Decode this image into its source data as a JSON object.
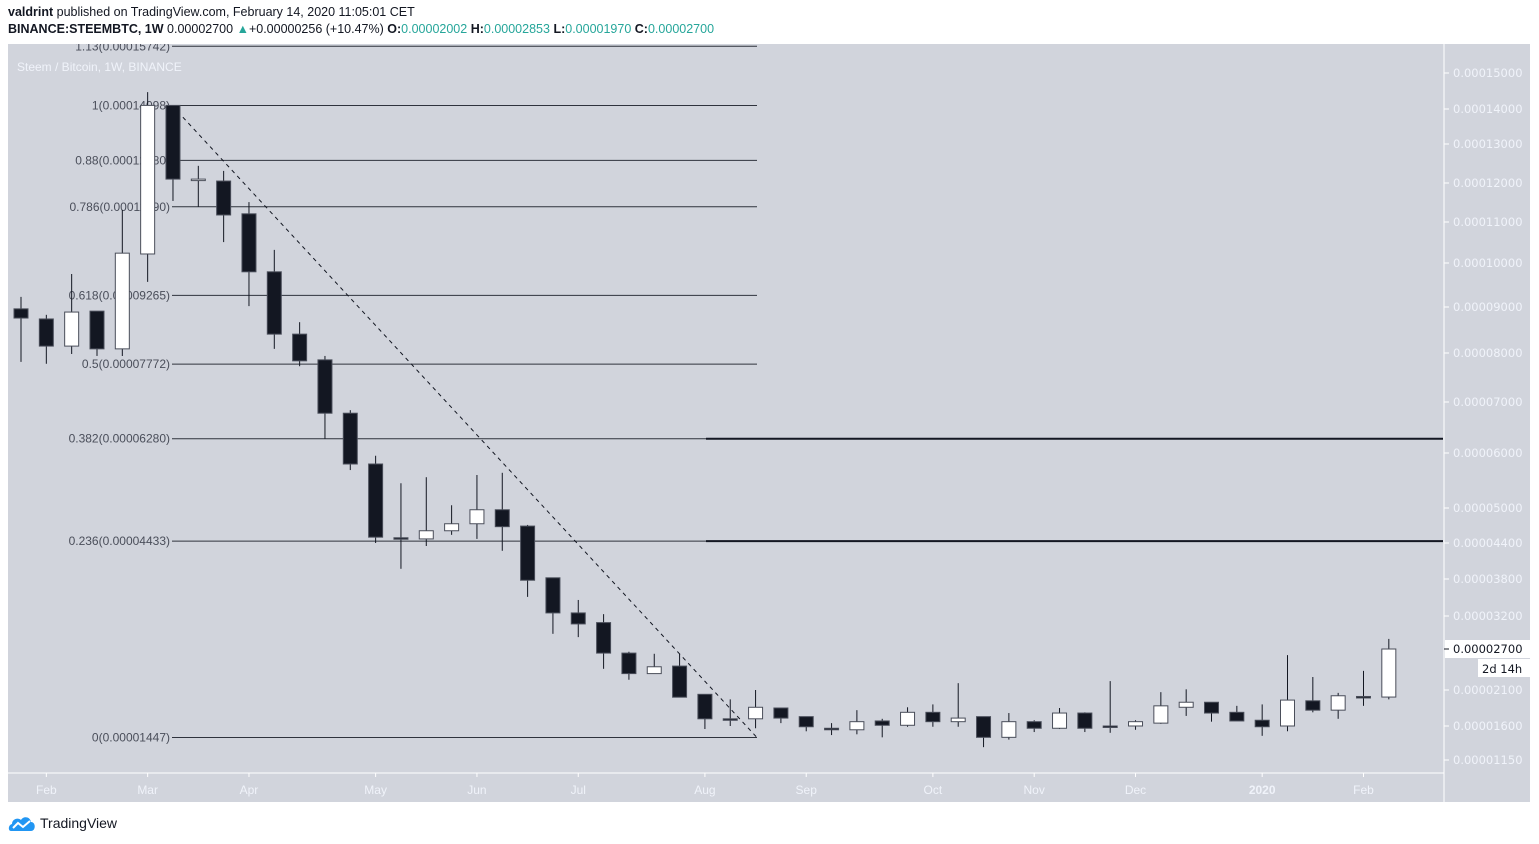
{
  "header": {
    "author": "valdrint",
    "published_text": "published on TradingView.com, February 14, 2020 11:05:01 CET",
    "symbol": "BINANCE:STEEMBTC, 1W",
    "last_price": "0.00002700",
    "change": "+0.00000256 (+10.47%)",
    "open_label": "O:",
    "open": "0.00002002",
    "high_label": "H:",
    "high": "0.00002853",
    "low_label": "L:",
    "low": "0.00001970",
    "close_label": "C:",
    "close": "0.00002700"
  },
  "legend_title": "Steem / Bitcoin, 1W, BINANCE",
  "footer": {
    "brand": "TradingView",
    "logo_icon": "tradingview-cloud-icon"
  },
  "colors": {
    "pane_bg": "#d1d4dc",
    "bull": "#ffffff",
    "bear": "#131722",
    "accent": "#26a69a"
  },
  "chart_data": {
    "type": "candlestick",
    "interval": "1W",
    "y_scale": "non-linear (tick-spaced)",
    "yticks": [
      "0.00015000",
      "0.00014000",
      "0.00013000",
      "0.00012000",
      "0.00011000",
      "0.00010000",
      "0.00009000",
      "0.00008000",
      "0.00007000",
      "0.00006000",
      "0.00005000",
      "0.00004400",
      "0.00003800",
      "0.00003200",
      "0.00002700",
      "0.00002100",
      "0.00001600",
      "0.00001150"
    ],
    "xticks": [
      "Feb",
      "Mar",
      "Apr",
      "May",
      "Jun",
      "Jul",
      "Aug",
      "Sep",
      "Oct",
      "Nov",
      "Dec",
      "2020",
      "Feb"
    ],
    "last_price_label": "0.00002700",
    "countdown_label": "2d 14h",
    "candles_ohlc": [
      [
        8.96e-05,
        9.23e-05,
        7.82e-05,
        8.76e-05
      ],
      [
        8.74e-05,
        8.83e-05,
        7.78e-05,
        8.15e-05
      ],
      [
        8.15e-05,
        9.75e-05,
        7.98e-05,
        8.89e-05
      ],
      [
        8.91e-05,
        8.91e-05,
        7.94e-05,
        8.09e-05
      ],
      [
        8.09e-05,
        0.0001131,
        7.94e-05,
        0.0001024
      ],
      [
        0.0001022,
        0.0001447,
        9.57e-05,
        0.000141
      ],
      [
        0.000141,
        0.000141,
        0.0001154,
        0.000121
      ],
      [
        0.000121,
        0.0001244,
        0.0001139,
        0.000121
      ],
      [
        0.0001205,
        0.0001231,
        0.0001051,
        0.0001118
      ],
      [
        0.0001121,
        0.0001151,
        9.02e-05,
        9.8e-05
      ],
      [
        9.8e-05,
        0.0001032,
        8.09e-05,
        8.41e-05
      ],
      [
        8.41e-05,
        8.67e-05,
        7.73e-05,
        7.84e-05
      ],
      [
        7.86e-05,
        7.94e-05,
        6.28e-05,
        6.78e-05
      ],
      [
        6.78e-05,
        6.84e-05,
        5.69e-05,
        5.8e-05
      ],
      [
        5.8e-05,
        5.95e-05,
        4.4e-05,
        4.5e-05
      ],
      [
        4.49e-05,
        5.45e-05,
        3.97e-05,
        4.48e-05
      ],
      [
        4.47e-05,
        5.56e-05,
        4.35e-05,
        4.61e-05
      ],
      [
        4.61e-05,
        5.05e-05,
        4.54e-05,
        4.73e-05
      ],
      [
        4.73e-05,
        5.6e-05,
        4.47e-05,
        4.97e-05
      ],
      [
        4.97e-05,
        5.64e-05,
        4.27e-05,
        4.68e-05
      ],
      [
        4.69e-05,
        4.71e-05,
        3.51e-05,
        3.78e-05
      ],
      [
        3.82e-05,
        3.82e-05,
        2.93e-05,
        3.25e-05
      ],
      [
        3.25e-05,
        3.46e-05,
        2.88e-05,
        3.08e-05
      ],
      [
        3.1e-05,
        3.23e-05,
        2.41e-05,
        2.64e-05
      ],
      [
        2.64e-05,
        2.66e-05,
        2.25e-05,
        2.34e-05
      ],
      [
        2.34e-05,
        2.63e-05,
        2.34e-05,
        2.44e-05
      ],
      [
        2.45e-05,
        2.63e-05,
        2e-05,
        2e-05
      ],
      [
        2.04e-05,
        2.04e-05,
        1.56e-05,
        1.7e-05
      ],
      [
        1.7e-05,
        1.97e-05,
        1.6e-05,
        1.69e-05
      ],
      [
        1.7e-05,
        2.1e-05,
        1.57e-05,
        1.86e-05
      ],
      [
        1.85e-05,
        1.85e-05,
        1.64e-05,
        1.71e-05
      ],
      [
        1.73e-05,
        1.73e-05,
        1.53e-05,
        1.59e-05
      ],
      [
        1.57e-05,
        1.64e-05,
        1.48e-05,
        1.55e-05
      ],
      [
        1.55e-05,
        1.82e-05,
        1.49e-05,
        1.66e-05
      ],
      [
        1.67e-05,
        1.7e-05,
        1.45e-05,
        1.61e-05
      ],
      [
        1.61e-05,
        1.86e-05,
        1.59e-05,
        1.79e-05
      ],
      [
        1.79e-05,
        1.9e-05,
        1.59e-05,
        1.66e-05
      ],
      [
        1.66e-05,
        2.2e-05,
        1.59e-05,
        1.71e-05
      ],
      [
        1.73e-05,
        1.73e-05,
        1.32e-05,
        1.45e-05
      ],
      [
        1.45e-05,
        1.78e-05,
        1.42e-05,
        1.66e-05
      ],
      [
        1.66e-05,
        1.68e-05,
        1.52e-05,
        1.57e-05
      ],
      [
        1.57e-05,
        1.85e-05,
        1.56e-05,
        1.78e-05
      ],
      [
        1.78e-05,
        1.79e-05,
        1.52e-05,
        1.57e-05
      ],
      [
        1.6e-05,
        2.23e-05,
        1.51e-05,
        1.59e-05
      ],
      [
        1.6e-05,
        1.68e-05,
        1.55e-05,
        1.66e-05
      ],
      [
        1.64e-05,
        2.07e-05,
        1.63e-05,
        1.88e-05
      ],
      [
        1.86e-05,
        2.11e-05,
        1.74e-05,
        1.93e-05
      ],
      [
        1.93e-05,
        1.93e-05,
        1.66e-05,
        1.78e-05
      ],
      [
        1.79e-05,
        1.88e-05,
        1.67e-05,
        1.67e-05
      ],
      [
        1.68e-05,
        1.9e-05,
        1.47e-05,
        1.59e-05
      ],
      [
        1.6e-05,
        2.61e-05,
        1.53e-05,
        1.96e-05
      ],
      [
        1.95e-05,
        2.29e-05,
        1.79e-05,
        1.82e-05
      ],
      [
        1.82e-05,
        2.06e-05,
        1.7e-05,
        2.02e-05
      ],
      [
        2.01e-05,
        2.38e-05,
        1.88e-05,
        2e-05
      ],
      [
        2.002e-05,
        2.853e-05,
        1.97e-05,
        2.7e-05
      ]
    ],
    "fib_levels": [
      {
        "label": "1.13(0.00015742)",
        "price": 0.00015742
      },
      {
        "label": "1(0.00014098)",
        "price": 0.00014098
      },
      {
        "label": "0.88(0.00012580)",
        "price": 0.0001258
      },
      {
        "label": "0.786(0.00011390)",
        "price": 0.0001139
      },
      {
        "label": "0.618(0.00009265)",
        "price": 9.265e-05
      },
      {
        "label": "0.5(0.00007772)",
        "price": 7.772e-05
      },
      {
        "label": "0.382(0.00006280)",
        "price": 6.28e-05
      },
      {
        "label": "0.236(0.00004433)",
        "price": 4.433e-05
      },
      {
        "label": "0(0.00001447)",
        "price": 1.447e-05
      }
    ],
    "horizontal_lines": [
      6.28e-05,
      4.433e-05
    ],
    "trendline": {
      "from_price": 0.00014098,
      "to_price": 1.447e-05,
      "style": "dashed"
    }
  }
}
